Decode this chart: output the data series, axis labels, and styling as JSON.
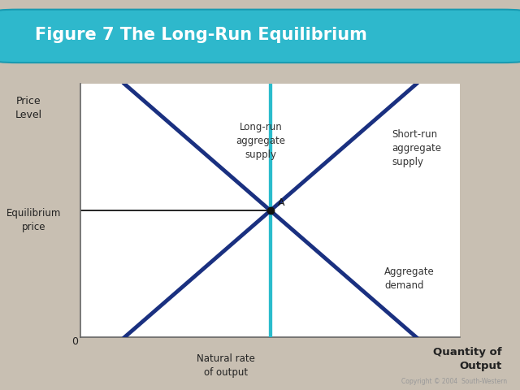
{
  "title": "Figure 7 The Long-Run Equilibrium",
  "title_bg_color": "#2eb8cc",
  "title_text_color": "#ffffff",
  "background_color": "#c8bfb2",
  "chart_bg_color": "#ffffff",
  "chart_shadow_color": "#b8b0a4",
  "xlabel": "Quantity of\nOutput",
  "ylabel": "Price\nLevel",
  "x_origin_label": "0",
  "equilibrium_label": "Equilibrium\nprice",
  "natural_rate_label": "Natural rate\nof output",
  "point_label": "A",
  "lras_label": "Long-run\naggregate\nsupply",
  "sras_label": "Short-run\naggregate\nsupply",
  "ad_label": "Aggregate\ndemand",
  "lras_color": "#2abccc",
  "sras_color": "#1a3080",
  "ad_color": "#1a3080",
  "equilibrium_line_color": "#000000",
  "point_color": "#111111",
  "equilibrium_x": 5,
  "equilibrium_y": 5,
  "xlim": [
    0,
    10
  ],
  "ylim": [
    0,
    10
  ],
  "lras_x": 5,
  "sras_slope": 1.3,
  "ad_slope": -1.3,
  "line_width": 2.8,
  "copyright_text": "Copyright © 2004  South-Western"
}
